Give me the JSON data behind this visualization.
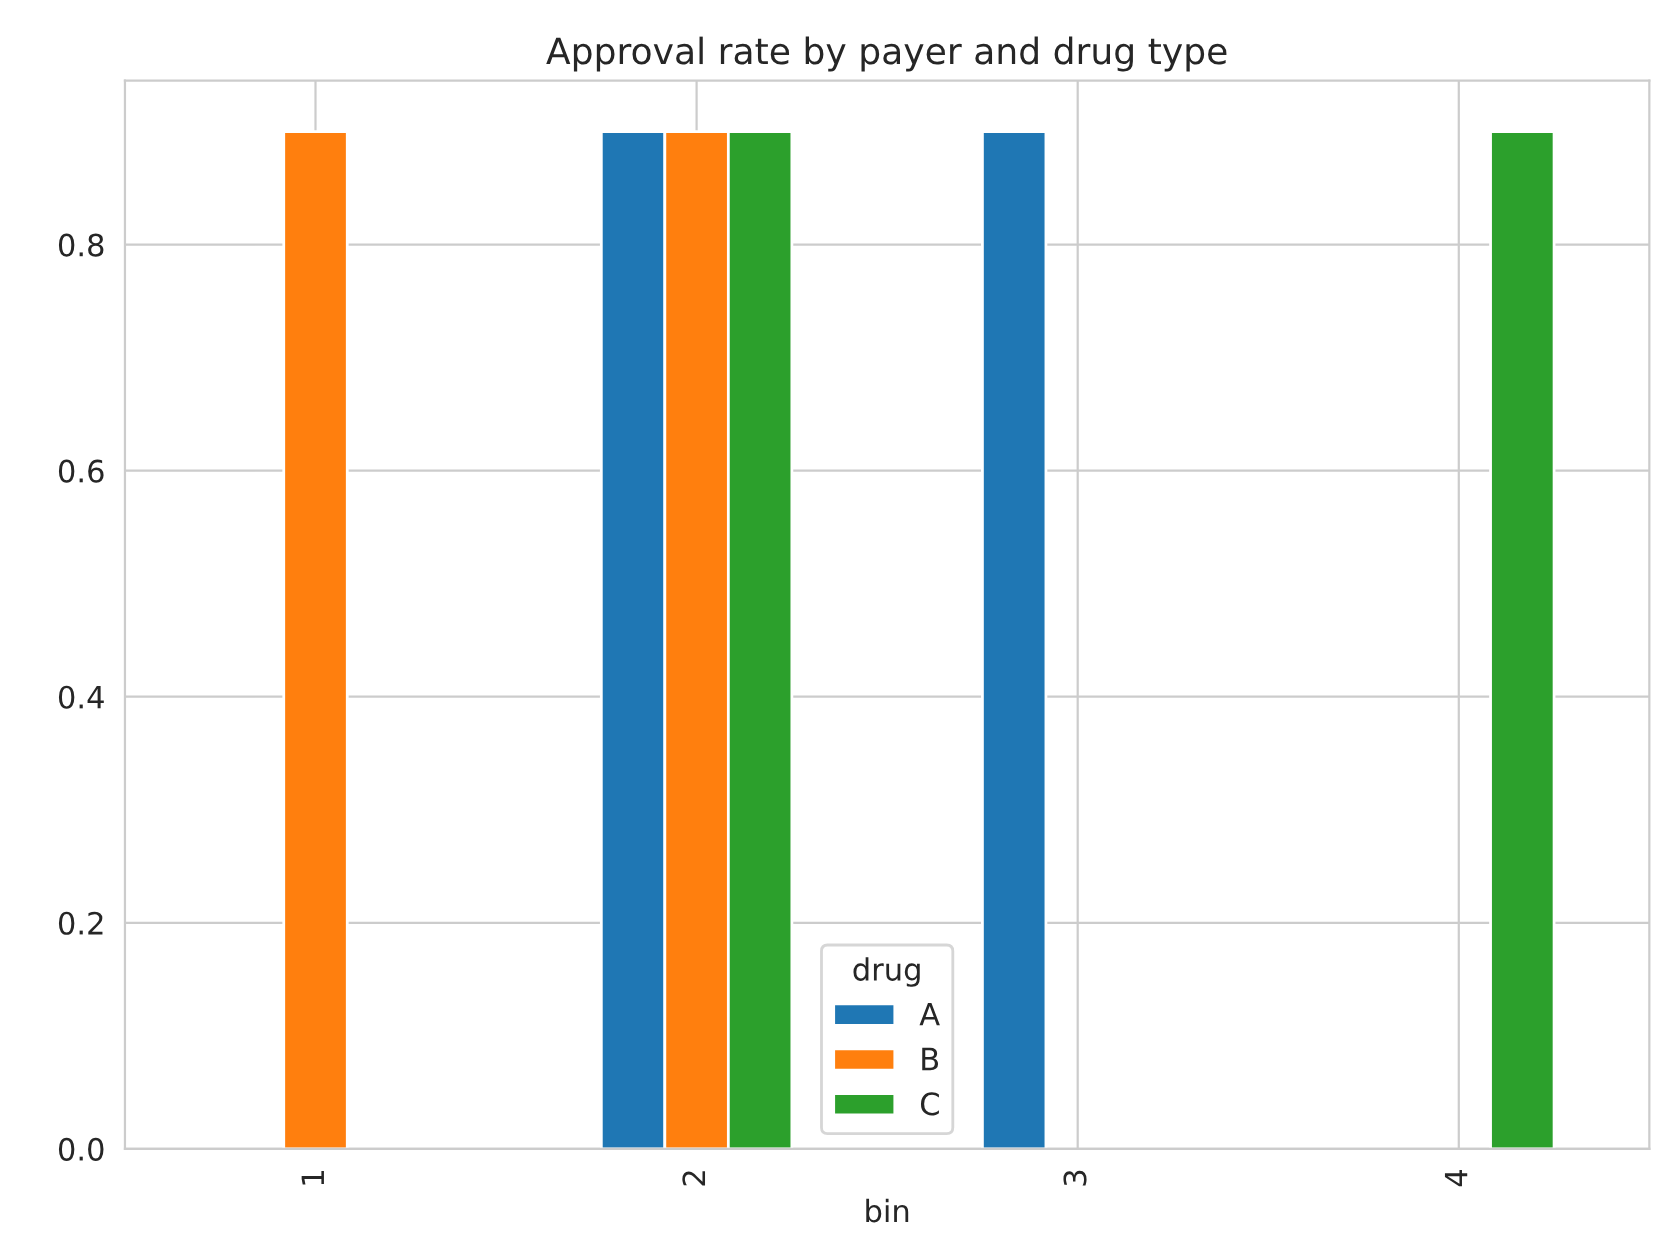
{
  "chart_data": {
    "type": "bar",
    "title": "Approval rate by payer and drug type",
    "xlabel": "bin",
    "categories": [
      "1",
      "2",
      "3",
      "4"
    ],
    "series": [
      {
        "name": "A",
        "color": "#1f77b4",
        "values": [
          null,
          0.9,
          0.9,
          null
        ]
      },
      {
        "name": "B",
        "color": "#ff7f0e",
        "values": [
          0.9,
          0.9,
          null,
          null
        ]
      },
      {
        "name": "C",
        "color": "#2ca02c",
        "values": [
          null,
          0.9,
          null,
          0.9
        ]
      }
    ],
    "legend_title": "drug",
    "legend": "bottom",
    "grid": true,
    "ylim": [
      0,
      0.945
    ],
    "yticks": [
      {
        "value": 0,
        "label": "0.0"
      },
      0.2,
      0.4,
      0.6,
      0.8
    ]
  }
}
